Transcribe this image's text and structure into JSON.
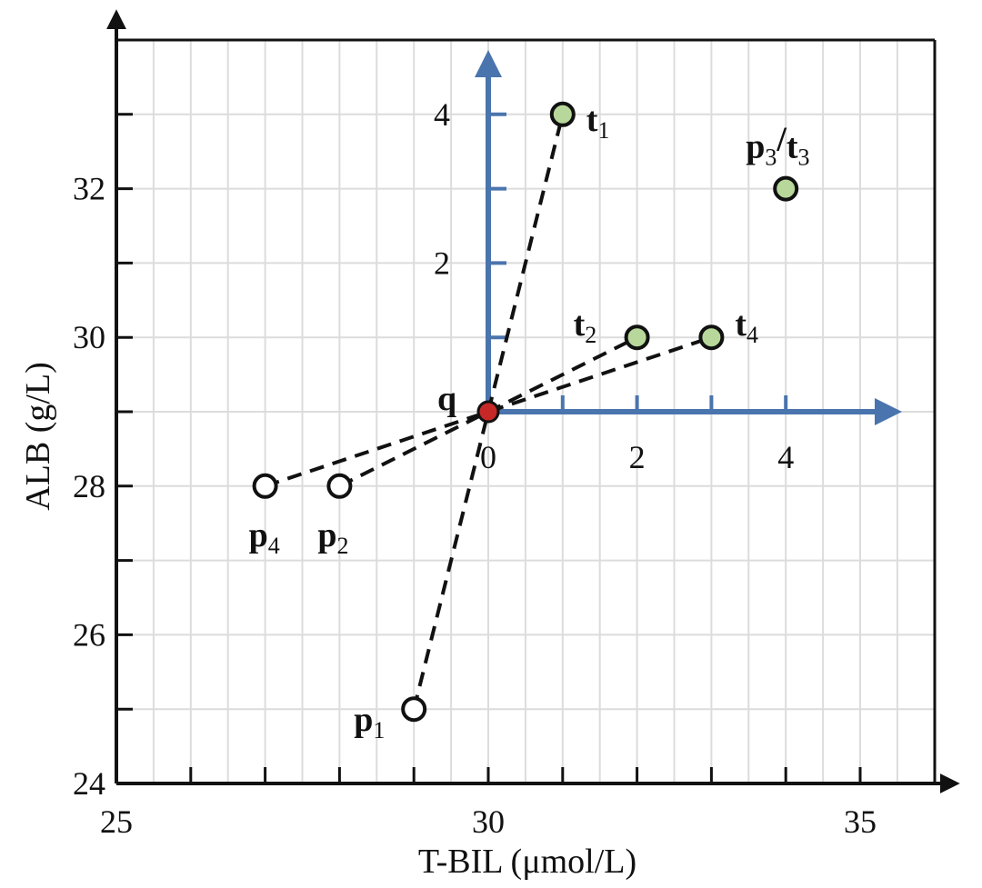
{
  "chart_data": {
    "type": "scatter",
    "title": "",
    "xlabel": "T-BIL (μmol/L)",
    "ylabel": "ALB (g/L)",
    "xlim": [
      25,
      36
    ],
    "ylim": [
      24,
      34
    ],
    "grid": true,
    "x_ticks": [
      25,
      30,
      35
    ],
    "y_ticks": [
      24,
      26,
      28,
      30,
      32
    ],
    "inner_axes": {
      "origin": [
        30,
        29
      ],
      "x_ticks": [
        0,
        2,
        4
      ],
      "y_ticks": [
        2,
        4
      ],
      "color": "#4a74ad"
    },
    "query": {
      "label": "q",
      "x": 30,
      "y": 29,
      "color": "#c62828"
    },
    "points": [
      {
        "label": "p",
        "sub": "1",
        "x": 29,
        "y": 25,
        "fill": "#ffffff"
      },
      {
        "label": "p",
        "sub": "2",
        "x": 28,
        "y": 28,
        "fill": "#ffffff"
      },
      {
        "label": "p",
        "sub": "4",
        "x": 27,
        "y": 28,
        "fill": "#ffffff"
      },
      {
        "label": "t",
        "sub": "1",
        "x": 31,
        "y": 33,
        "fill": "#b7d89a"
      },
      {
        "label": "t",
        "sub": "2",
        "x": 32,
        "y": 30,
        "fill": "#b7d89a"
      },
      {
        "label": "t",
        "sub": "4",
        "x": 33,
        "y": 30,
        "fill": "#b7d89a"
      },
      {
        "label": "p",
        "sub": "3",
        "label2": "t",
        "sub2": "3",
        "x": 34,
        "y": 32,
        "fill": "#b7d89a"
      }
    ],
    "segments": [
      {
        "from": [
          29,
          25
        ],
        "to": [
          31,
          33
        ]
      },
      {
        "from": [
          28,
          28
        ],
        "to": [
          32,
          30
        ]
      },
      {
        "from": [
          27,
          28
        ],
        "to": [
          33,
          30
        ]
      }
    ]
  }
}
